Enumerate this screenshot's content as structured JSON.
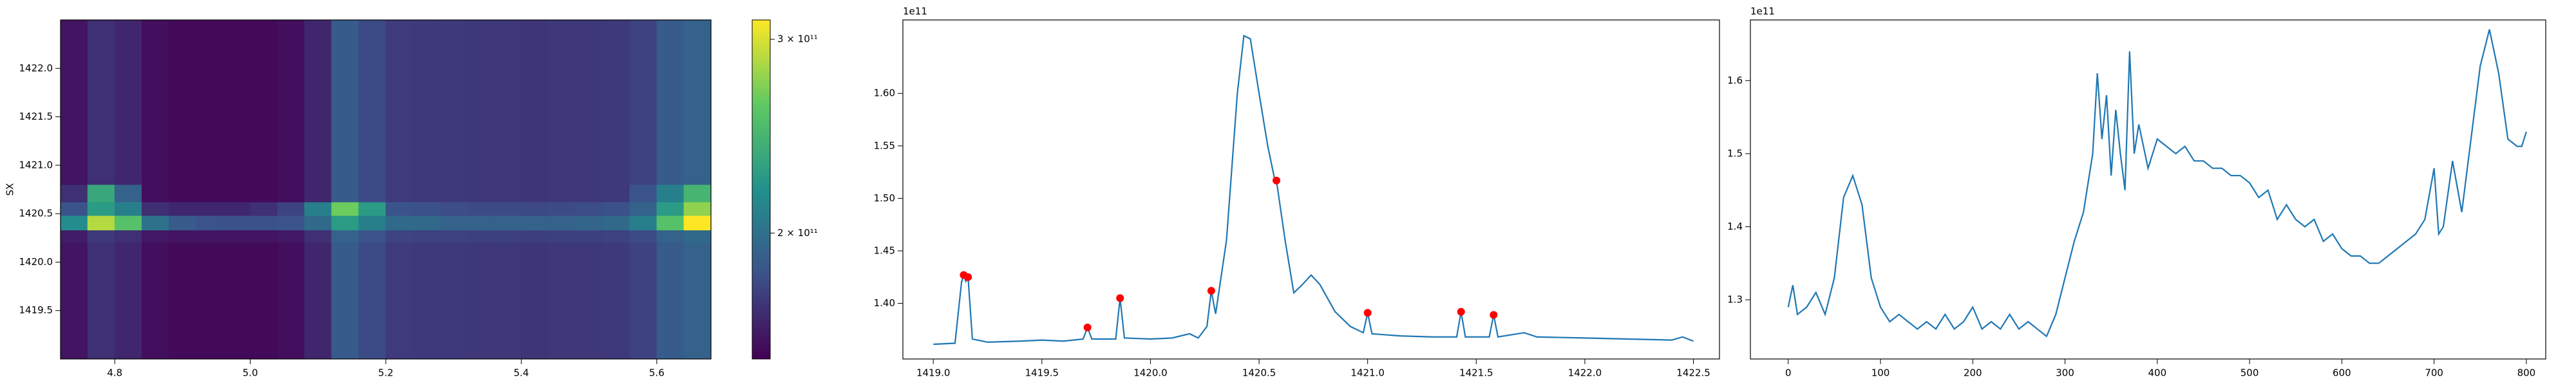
{
  "chart_data": [
    {
      "type": "heatmap",
      "ylabel": "SX",
      "colormap": "viridis",
      "xlim": [
        4.72,
        5.68
      ],
      "ylim": [
        1419.0,
        1422.5
      ],
      "xticks": [
        4.8,
        {
          "value": 5.0,
          "label": "5.0"
        },
        5.2,
        5.4,
        5.6
      ],
      "yticks": [
        1419.5,
        {
          "value": 1420.0,
          "label": "1420.0"
        },
        1420.5,
        {
          "value": 1421.0,
          "label": "1421.0"
        },
        1421.5,
        {
          "value": 1422.0,
          "label": "1422.0"
        }
      ],
      "x_edges": [
        4.72,
        4.76,
        4.8,
        4.84,
        4.88,
        4.92,
        4.96,
        5.0,
        5.04,
        5.08,
        5.12,
        5.16,
        5.2,
        5.24,
        5.28,
        5.32,
        5.36,
        5.4,
        5.44,
        5.48,
        5.52,
        5.56,
        5.6,
        5.64,
        5.68
      ],
      "y_edges": [
        1419.0,
        1420.2,
        1420.33,
        1420.48,
        1420.62,
        1420.8,
        1422.5
      ],
      "z": [
        [
          145000000000.0,
          160000000000.0,
          155000000000.0,
          142000000000.0,
          140000000000.0,
          140000000000.0,
          140000000000.0,
          140000000000.0,
          142000000000.0,
          155000000000.0,
          185000000000.0,
          175000000000.0,
          166000000000.0,
          165000000000.0,
          165000000000.0,
          164000000000.0,
          164000000000.0,
          163000000000.0,
          164000000000.0,
          164000000000.0,
          165000000000.0,
          170000000000.0,
          185000000000.0,
          190000000000.0
        ],
        [
          150000000000.0,
          165000000000.0,
          160000000000.0,
          147000000000.0,
          145000000000.0,
          145000000000.0,
          145000000000.0,
          145000000000.0,
          147000000000.0,
          160000000000.0,
          190000000000.0,
          180000000000.0,
          171000000000.0,
          170000000000.0,
          170000000000.0,
          169000000000.0,
          169000000000.0,
          168000000000.0,
          169000000000.0,
          169000000000.0,
          170000000000.0,
          175000000000.0,
          190000000000.0,
          195000000000.0
        ],
        [
          220000000000.0,
          290000000000.0,
          260000000000.0,
          200000000000.0,
          185000000000.0,
          180000000000.0,
          178000000000.0,
          178000000000.0,
          180000000000.0,
          195000000000.0,
          230000000000.0,
          210000000000.0,
          195000000000.0,
          195000000000.0,
          190000000000.0,
          190000000000.0,
          190000000000.0,
          190000000000.0,
          190000000000.0,
          192000000000.0,
          195000000000.0,
          210000000000.0,
          260000000000.0,
          310000000000.0
        ],
        [
          180000000000.0,
          230000000000.0,
          210000000000.0,
          160000000000.0,
          155000000000.0,
          155000000000.0,
          155000000000.0,
          160000000000.0,
          170000000000.0,
          210000000000.0,
          270000000000.0,
          230000000000.0,
          180000000000.0,
          178000000000.0,
          176000000000.0,
          175000000000.0,
          175000000000.0,
          174000000000.0,
          175000000000.0,
          176000000000.0,
          178000000000.0,
          190000000000.0,
          230000000000.0,
          280000000000.0
        ],
        [
          160000000000.0,
          240000000000.0,
          190000000000.0,
          142000000000.0,
          140000000000.0,
          140000000000.0,
          140000000000.0,
          140000000000.0,
          142000000000.0,
          155000000000.0,
          185000000000.0,
          175000000000.0,
          166000000000.0,
          165000000000.0,
          165000000000.0,
          164000000000.0,
          164000000000.0,
          163000000000.0,
          164000000000.0,
          164000000000.0,
          165000000000.0,
          180000000000.0,
          210000000000.0,
          250000000000.0
        ],
        [
          145000000000.0,
          160000000000.0,
          155000000000.0,
          142000000000.0,
          140000000000.0,
          140000000000.0,
          140000000000.0,
          140000000000.0,
          142000000000.0,
          155000000000.0,
          185000000000.0,
          175000000000.0,
          166000000000.0,
          165000000000.0,
          165000000000.0,
          164000000000.0,
          164000000000.0,
          163000000000.0,
          164000000000.0,
          164000000000.0,
          165000000000.0,
          170000000000.0,
          185000000000.0,
          190000000000.0
        ]
      ],
      "clim": [
        135000000000.0,
        310000000000.0
      ],
      "cticks": [
        {
          "value": 200000000000.0,
          "label": "2 × 10¹¹"
        },
        {
          "value": 300000000000.0,
          "label": "3 × 10¹¹"
        }
      ]
    },
    {
      "type": "line",
      "y_offset_label": "1e11",
      "xlim": [
        1418.86,
        1422.62
      ],
      "ylim": [
        1.347,
        1.67
      ],
      "xticks": [
        {
          "value": 1419.0,
          "label": "1419.0"
        },
        1419.5,
        {
          "value": 1420.0,
          "label": "1420.0"
        },
        1420.5,
        {
          "value": 1421.0,
          "label": "1421.0"
        },
        1421.5,
        {
          "value": 1422.0,
          "label": "1422.0"
        },
        1422.5
      ],
      "yticks": [
        {
          "value": 1.4,
          "label": "1.40"
        },
        1.45,
        {
          "value": 1.5,
          "label": "1.50"
        },
        1.55,
        {
          "value": 1.6,
          "label": "1.60"
        }
      ],
      "series": [
        {
          "type": "line",
          "color": "#1f77b4",
          "x": [
            1419.0,
            1419.1,
            1419.13,
            1419.14,
            1419.15,
            1419.16,
            1419.18,
            1419.25,
            1419.4,
            1419.5,
            1419.6,
            1419.69,
            1419.71,
            1419.73,
            1419.84,
            1419.86,
            1419.88,
            1420.0,
            1420.1,
            1420.18,
            1420.22,
            1420.26,
            1420.28,
            1420.3,
            1420.35,
            1420.4,
            1420.43,
            1420.46,
            1420.5,
            1420.54,
            1420.57,
            1420.58,
            1420.62,
            1420.66,
            1420.7,
            1420.74,
            1420.78,
            1420.85,
            1420.92,
            1420.98,
            1421.0,
            1421.02,
            1421.15,
            1421.3,
            1421.41,
            1421.43,
            1421.45,
            1421.56,
            1421.58,
            1421.6,
            1421.72,
            1421.78,
            1422.0,
            1422.2,
            1422.4,
            1422.45,
            1422.5
          ],
          "values": [
            1.361,
            1.362,
            1.42,
            1.427,
            1.421,
            1.425,
            1.366,
            1.363,
            1.364,
            1.365,
            1.364,
            1.366,
            1.377,
            1.366,
            1.366,
            1.405,
            1.367,
            1.366,
            1.367,
            1.371,
            1.367,
            1.378,
            1.412,
            1.39,
            1.46,
            1.6,
            1.655,
            1.652,
            1.6,
            1.55,
            1.52,
            1.517,
            1.46,
            1.41,
            1.418,
            1.427,
            1.418,
            1.392,
            1.378,
            1.372,
            1.391,
            1.371,
            1.369,
            1.368,
            1.368,
            1.392,
            1.368,
            1.368,
            1.389,
            1.368,
            1.372,
            1.368,
            1.367,
            1.366,
            1.365,
            1.368,
            1.364
          ]
        },
        {
          "type": "scatter",
          "color": "#ff0000",
          "x": [
            1419.14,
            1419.16,
            1419.71,
            1419.86,
            1420.28,
            1420.58,
            1421.0,
            1421.43,
            1421.58
          ],
          "values": [
            1.427,
            1.425,
            1.377,
            1.405,
            1.412,
            1.517,
            1.391,
            1.392,
            1.389
          ]
        }
      ]
    },
    {
      "type": "line",
      "y_offset_label": "1e11",
      "xlim": [
        -41,
        821
      ],
      "ylim": [
        1.219,
        1.683
      ],
      "xticks": [
        0,
        100,
        200,
        300,
        400,
        500,
        600,
        700,
        800
      ],
      "yticks": [
        1.3,
        1.4,
        1.5,
        1.6
      ],
      "series": [
        {
          "type": "line",
          "color": "#1f77b4",
          "x": [
            0,
            5,
            10,
            20,
            30,
            40,
            50,
            60,
            70,
            80,
            90,
            100,
            110,
            120,
            130,
            140,
            150,
            160,
            170,
            180,
            190,
            200,
            210,
            220,
            230,
            240,
            250,
            260,
            270,
            280,
            290,
            300,
            310,
            320,
            330,
            335,
            340,
            345,
            350,
            355,
            360,
            365,
            370,
            375,
            380,
            390,
            400,
            410,
            420,
            430,
            440,
            450,
            460,
            470,
            480,
            490,
            500,
            510,
            520,
            530,
            540,
            550,
            560,
            570,
            580,
            590,
            600,
            610,
            620,
            630,
            640,
            650,
            660,
            670,
            680,
            690,
            700,
            705,
            710,
            720,
            730,
            740,
            750,
            760,
            770,
            780,
            790,
            795,
            800
          ],
          "values": [
            1.29,
            1.32,
            1.28,
            1.29,
            1.31,
            1.28,
            1.33,
            1.44,
            1.47,
            1.43,
            1.33,
            1.29,
            1.27,
            1.28,
            1.27,
            1.26,
            1.27,
            1.26,
            1.28,
            1.26,
            1.27,
            1.29,
            1.26,
            1.27,
            1.26,
            1.28,
            1.26,
            1.27,
            1.26,
            1.25,
            1.28,
            1.33,
            1.38,
            1.42,
            1.5,
            1.61,
            1.52,
            1.58,
            1.47,
            1.56,
            1.5,
            1.45,
            1.64,
            1.5,
            1.54,
            1.48,
            1.52,
            1.51,
            1.5,
            1.51,
            1.49,
            1.49,
            1.48,
            1.48,
            1.47,
            1.47,
            1.46,
            1.44,
            1.45,
            1.41,
            1.43,
            1.41,
            1.4,
            1.41,
            1.38,
            1.39,
            1.37,
            1.36,
            1.36,
            1.35,
            1.35,
            1.36,
            1.37,
            1.38,
            1.39,
            1.41,
            1.48,
            1.39,
            1.4,
            1.49,
            1.42,
            1.52,
            1.62,
            1.67,
            1.61,
            1.52,
            1.51,
            1.51,
            1.53
          ]
        }
      ]
    }
  ]
}
